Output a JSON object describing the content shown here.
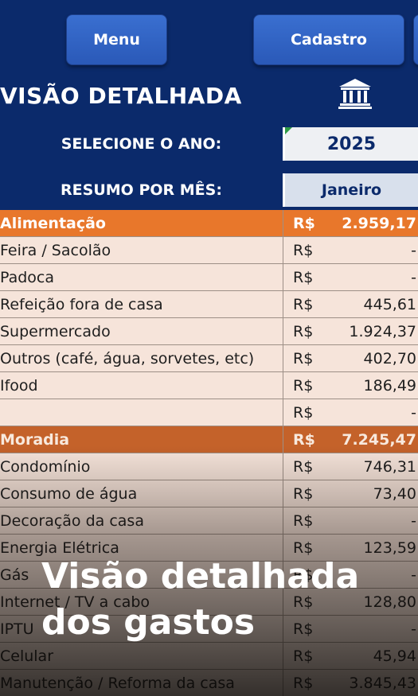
{
  "header": {
    "menu_label": "Menu",
    "cadastro_label": "Cadastro",
    "title": "VISÃO DETALHADA",
    "icon": "bank-icon"
  },
  "year_selector": {
    "label": "SELECIONE O ANO:",
    "value": "2025"
  },
  "summary": {
    "label": "RESUMO POR MÊS:",
    "month": "Janeiro"
  },
  "rows": [
    {
      "name": "Alimentação",
      "currency": "R$",
      "value": "2.959,17",
      "kind": "category"
    },
    {
      "name": "Feira  / Sacolão",
      "currency": "R$",
      "value": "-",
      "kind": "item"
    },
    {
      "name": "Padoca",
      "currency": "R$",
      "value": "-",
      "kind": "item"
    },
    {
      "name": "Refeição fora de casa",
      "currency": "R$",
      "value": "445,61",
      "kind": "item"
    },
    {
      "name": "Supermercado",
      "currency": "R$",
      "value": "1.924,37",
      "kind": "item"
    },
    {
      "name": "Outros (café, água, sorvetes, etc)",
      "currency": "R$",
      "value": "402,70",
      "kind": "item"
    },
    {
      "name": "Ifood",
      "currency": "R$",
      "value": "186,49",
      "kind": "item"
    },
    {
      "name": "",
      "currency": "R$",
      "value": "-",
      "kind": "item"
    },
    {
      "name": "Moradia",
      "currency": "R$",
      "value": "7.245,47",
      "kind": "category2"
    },
    {
      "name": "Condomínio",
      "currency": "R$",
      "value": "746,31",
      "kind": "item"
    },
    {
      "name": "Consumo de água",
      "currency": "R$",
      "value": "73,40",
      "kind": "item"
    },
    {
      "name": "Decoração da casa",
      "currency": "R$",
      "value": "-",
      "kind": "item"
    },
    {
      "name": "Energia Elétrica",
      "currency": "R$",
      "value": "123,59",
      "kind": "item"
    },
    {
      "name": "Gás",
      "currency": "R$",
      "value": "-",
      "kind": "item"
    },
    {
      "name": "Internet / TV a cabo",
      "currency": "R$",
      "value": "128,80",
      "kind": "item"
    },
    {
      "name": "IPTU",
      "currency": "R$",
      "value": "-",
      "kind": "item"
    },
    {
      "name": "Celular",
      "currency": "R$",
      "value": "45,94",
      "kind": "item"
    },
    {
      "name": "Manutenção / Reforma da casa",
      "currency": "R$",
      "value": "3.845,43",
      "kind": "item"
    }
  ],
  "overlay": {
    "caption": "Visão detalhada dos gastos"
  }
}
